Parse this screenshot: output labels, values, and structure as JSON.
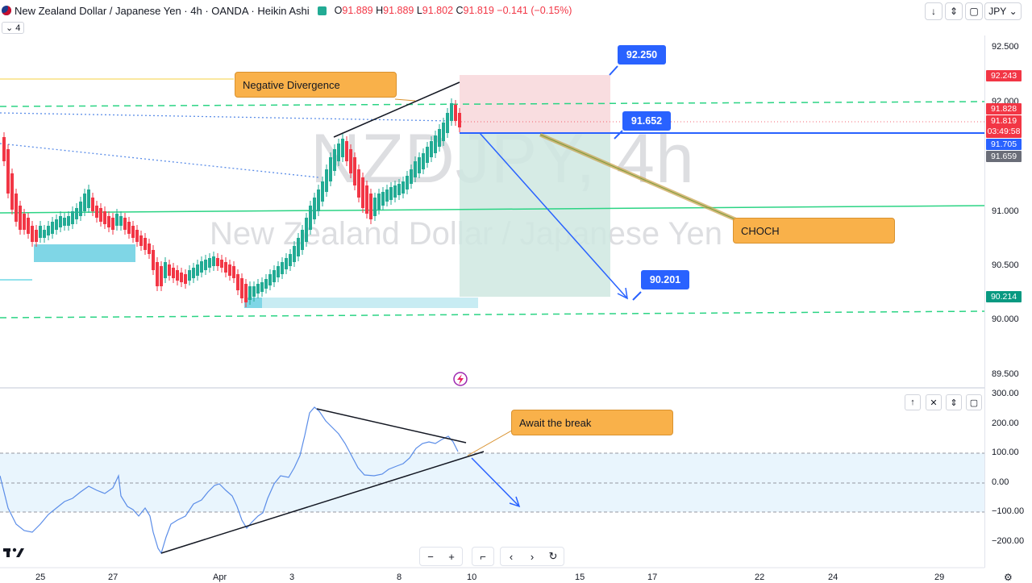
{
  "header": {
    "title": "New Zealand Dollar / Japanese Yen · 4h · OANDA · Heikin Ashi",
    "ohlc": [
      {
        "k": "O",
        "v": "91.889"
      },
      {
        "k": "H",
        "v": "91.889"
      },
      {
        "k": "L",
        "v": "91.802"
      },
      {
        "k": "C",
        "v": "91.819"
      }
    ],
    "change": "−0.141 (−0.15%)",
    "indicator_count": "4",
    "currency": "JPY"
  },
  "watermark": {
    "symbol": "NZDJPY, 4h",
    "name": "New Zealand Dollar / Japanese Yen"
  },
  "price_axis": {
    "ticks": [
      "92.500",
      "92.000",
      "91.000",
      "90.500",
      "90.000",
      "89.500"
    ],
    "tags": {
      "target": "92.243",
      "high": "91.828",
      "last": "91.819",
      "countdown": "03:49:58",
      "blue": "91.705",
      "gray": "91.659",
      "green": "90.214"
    }
  },
  "indicator_axis": {
    "ticks": [
      "300.00",
      "200.00",
      "100.00",
      "0.00",
      "−100.00",
      "−200.00"
    ]
  },
  "time_axis": {
    "labels": [
      "25",
      "27",
      "Apr",
      "3",
      "8",
      "10",
      "15",
      "17",
      "22",
      "24",
      "29"
    ]
  },
  "annotations": {
    "neg_div": "Negative Divergence",
    "choch": "CHOCH",
    "await": "Await the break",
    "stop": "92.250",
    "entry": "91.652",
    "target": "90.201"
  },
  "colors": {
    "up": "#22ab94",
    "down": "#f23645",
    "accent": "#2962ff",
    "callout": "#f9b14a"
  },
  "icons": {
    "logo": "tradingview-logo",
    "nav": [
      "zoom-out-icon",
      "zoom-in-icon",
      "reset-scale-icon",
      "scroll-left-icon",
      "scroll-right-icon",
      "reload-icon"
    ]
  }
}
